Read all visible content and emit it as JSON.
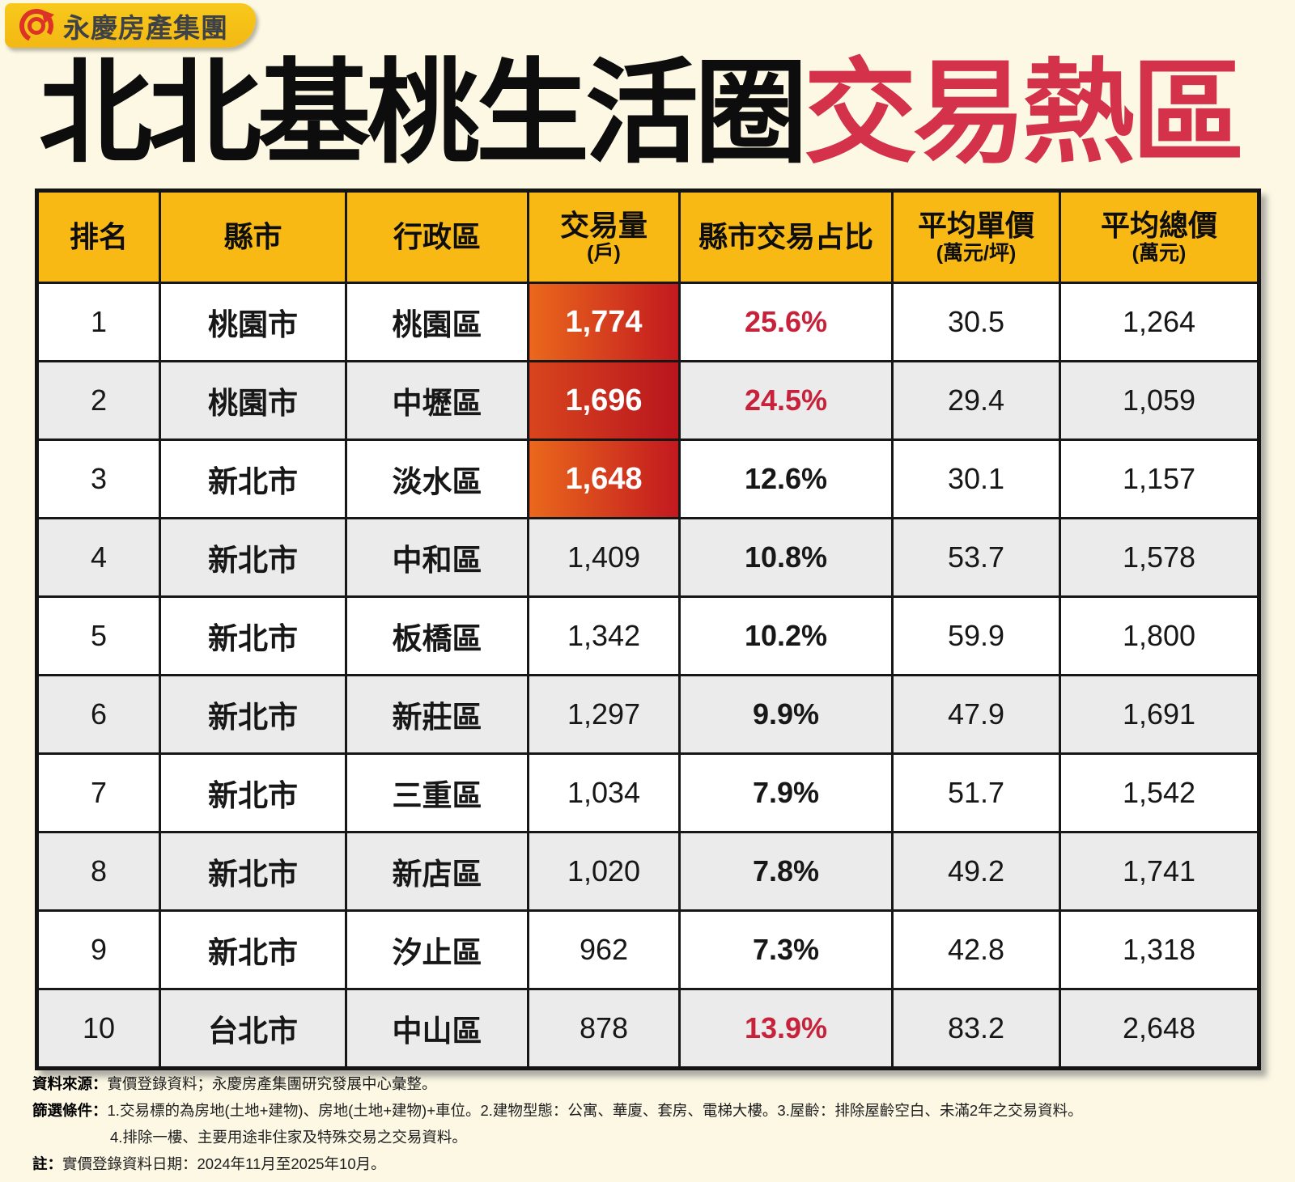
{
  "logo": {
    "brand": "永慶房產集團"
  },
  "title": {
    "black": "北北基桃生活圈",
    "red": "交易熱區"
  },
  "colors": {
    "background": "#FCF8E4",
    "badge_yellow": "#F6C117",
    "header_yellow": "#F9B915",
    "title_red": "#D4314B",
    "share_red": "#C8213B",
    "hot_gradient_start": "#EA681C",
    "hot_gradient_end": "#C2191F",
    "alt_row_gray": "#EBEBEB",
    "logo_red": "#DD3327"
  },
  "table": {
    "headers": [
      {
        "key": "rank",
        "label": "排名",
        "sub": ""
      },
      {
        "key": "city",
        "label": "縣市",
        "sub": ""
      },
      {
        "key": "district",
        "label": "行政區",
        "sub": ""
      },
      {
        "key": "volume",
        "label": "交易量",
        "sub": "(戶)"
      },
      {
        "key": "share",
        "label": "縣市交易占比",
        "sub": ""
      },
      {
        "key": "unit-price",
        "label": "平均單價",
        "sub": "(萬元/坪)"
      },
      {
        "key": "total-price",
        "label": "平均總價",
        "sub": "(萬元)"
      }
    ],
    "rows": [
      {
        "rank": "1",
        "city": "桃園市",
        "district": "桃園區",
        "volume": "1,774",
        "share": "25.6%",
        "unit_price": "30.5",
        "total_price": "1,264",
        "volume_hot": true,
        "share_red": true
      },
      {
        "rank": "2",
        "city": "桃園市",
        "district": "中壢區",
        "volume": "1,696",
        "share": "24.5%",
        "unit_price": "29.4",
        "total_price": "1,059",
        "volume_hot": true,
        "share_red": true
      },
      {
        "rank": "3",
        "city": "新北市",
        "district": "淡水區",
        "volume": "1,648",
        "share": "12.6%",
        "unit_price": "30.1",
        "total_price": "1,157",
        "volume_hot": true,
        "share_red": false
      },
      {
        "rank": "4",
        "city": "新北市",
        "district": "中和區",
        "volume": "1,409",
        "share": "10.8%",
        "unit_price": "53.7",
        "total_price": "1,578",
        "volume_hot": false,
        "share_red": false
      },
      {
        "rank": "5",
        "city": "新北市",
        "district": "板橋區",
        "volume": "1,342",
        "share": "10.2%",
        "unit_price": "59.9",
        "total_price": "1,800",
        "volume_hot": false,
        "share_red": false
      },
      {
        "rank": "6",
        "city": "新北市",
        "district": "新莊區",
        "volume": "1,297",
        "share": "9.9%",
        "unit_price": "47.9",
        "total_price": "1,691",
        "volume_hot": false,
        "share_red": false
      },
      {
        "rank": "7",
        "city": "新北市",
        "district": "三重區",
        "volume": "1,034",
        "share": "7.9%",
        "unit_price": "51.7",
        "total_price": "1,542",
        "volume_hot": false,
        "share_red": false
      },
      {
        "rank": "8",
        "city": "新北市",
        "district": "新店區",
        "volume": "1,020",
        "share": "7.8%",
        "unit_price": "49.2",
        "total_price": "1,741",
        "volume_hot": false,
        "share_red": false
      },
      {
        "rank": "9",
        "city": "新北市",
        "district": "汐止區",
        "volume": "962",
        "share": "7.3%",
        "unit_price": "42.8",
        "total_price": "1,318",
        "volume_hot": false,
        "share_red": false
      },
      {
        "rank": "10",
        "city": "台北市",
        "district": "中山區",
        "volume": "878",
        "share": "13.9%",
        "unit_price": "83.2",
        "total_price": "2,648",
        "volume_hot": false,
        "share_red": true
      }
    ]
  },
  "chart_data": {
    "type": "table",
    "title": "北北基桃生活圈交易熱區",
    "columns": [
      "排名",
      "縣市",
      "行政區",
      "交易量(戶)",
      "縣市交易占比",
      "平均單價(萬元/坪)",
      "平均總價(萬元)"
    ],
    "rows": [
      [
        1,
        "桃園市",
        "桃園區",
        1774,
        "25.6%",
        30.5,
        1264
      ],
      [
        2,
        "桃園市",
        "中壢區",
        1696,
        "24.5%",
        29.4,
        1059
      ],
      [
        3,
        "新北市",
        "淡水區",
        1648,
        "12.6%",
        30.1,
        1157
      ],
      [
        4,
        "新北市",
        "中和區",
        1409,
        "10.8%",
        53.7,
        1578
      ],
      [
        5,
        "新北市",
        "板橋區",
        1342,
        "10.2%",
        59.9,
        1800
      ],
      [
        6,
        "新北市",
        "新莊區",
        1297,
        "9.9%",
        47.9,
        1691
      ],
      [
        7,
        "新北市",
        "三重區",
        1034,
        "7.9%",
        51.7,
        1542
      ],
      [
        8,
        "新北市",
        "新店區",
        1020,
        "7.8%",
        49.2,
        1741
      ],
      [
        9,
        "新北市",
        "汐止區",
        962,
        "7.3%",
        42.8,
        1318
      ],
      [
        10,
        "台北市",
        "中山區",
        878,
        "13.9%",
        83.2,
        2648
      ]
    ],
    "highlights": {
      "volume_gradient_rows": [
        1,
        2,
        3
      ],
      "red_share_rows": [
        1,
        2,
        10
      ]
    }
  },
  "footer": {
    "source_label": "資料來源：",
    "source_text": "實價登錄資料；永慶房產集團研究發展中心彙整。",
    "filter_label": "篩選條件：",
    "filter_text_1": "1.交易標的為房地(土地+建物)、房地(土地+建物)+車位。2.建物型態：公寓、華廈、套房、電梯大樓。3.屋齡：排除屋齡空白、未滿2年之交易資料。",
    "filter_text_2": "4.排除一樓、主要用途非住家及特殊交易之交易資料。",
    "note_label": "註：",
    "note_text": "實價登錄資料日期：2024年11月至2025年10月。"
  }
}
